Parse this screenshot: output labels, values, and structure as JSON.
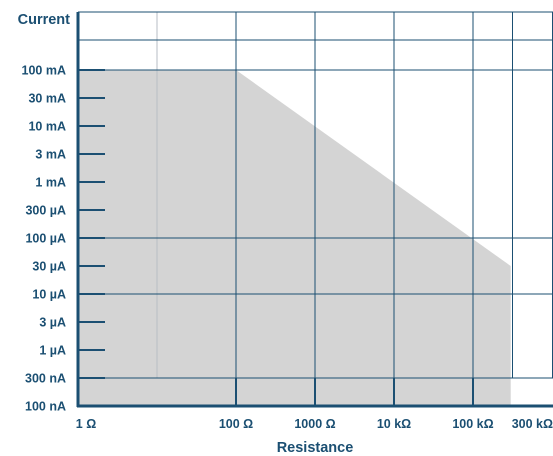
{
  "chart_data": {
    "type": "area",
    "ylabel": "Current",
    "xlabel": "Resistance",
    "y_ticks": [
      {
        "value": 1e-07,
        "label": "100 nA"
      },
      {
        "value": 3e-07,
        "label": "300 nA"
      },
      {
        "value": 1e-06,
        "label": "1 µA"
      },
      {
        "value": 3e-06,
        "label": "3 µA"
      },
      {
        "value": 1e-05,
        "label": "10 µA"
      },
      {
        "value": 3e-05,
        "label": "30 µA"
      },
      {
        "value": 0.0001,
        "label": "100 µA"
      },
      {
        "value": 0.0003,
        "label": "300 µA"
      },
      {
        "value": 0.001,
        "label": "1 mA"
      },
      {
        "value": 0.003,
        "label": "3 mA"
      },
      {
        "value": 0.01,
        "label": "10 mA"
      },
      {
        "value": 0.03,
        "label": "30 mA"
      },
      {
        "value": 0.1,
        "label": "100 mA"
      }
    ],
    "x_ticks": [
      {
        "value": 1,
        "label": "1 Ω"
      },
      {
        "value": 100,
        "label": "100 Ω"
      },
      {
        "value": 1000,
        "label": "1000 Ω"
      },
      {
        "value": 10000,
        "label": "10 kΩ"
      },
      {
        "value": 100000,
        "label": "100 kΩ"
      },
      {
        "value": 300000,
        "label": "300 kΩ"
      }
    ],
    "series": [
      {
        "points": [
          {
            "x": 1,
            "y": 0.1
          },
          {
            "x": 100,
            "y": 0.1
          },
          {
            "x": 300000,
            "y": 3e-05
          },
          {
            "x": 300000,
            "y": 1e-07
          },
          {
            "x": 1,
            "y": 1e-07
          }
        ]
      }
    ],
    "grid": true,
    "colors": {
      "axis": "#1b4f72",
      "grid": "#1b4f72",
      "fill": "#d4d4d4",
      "text": "#1b4f72"
    }
  }
}
